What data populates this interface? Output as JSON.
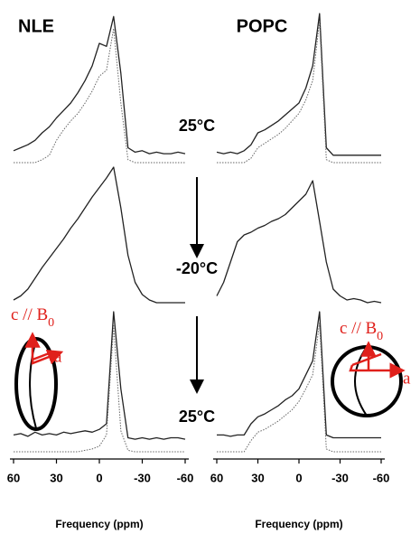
{
  "chart_data": [
    {
      "type": "line",
      "title": "NLE",
      "xlabel": "Frequency (ppm)",
      "xlim": [
        60,
        -60
      ],
      "xticks": [
        60,
        30,
        0,
        -30,
        -60
      ],
      "x": [
        60,
        55,
        50,
        45,
        40,
        35,
        30,
        25,
        20,
        15,
        10,
        5,
        0,
        -5,
        -10,
        -15,
        -20,
        -25,
        -30,
        -35,
        -40,
        -45,
        -50,
        -55,
        -60
      ],
      "panels": [
        {
          "series": [
            {
              "color": "#222222",
              "style": "solid",
              "values": [
                0.08,
                0.1,
                0.12,
                0.15,
                0.2,
                0.24,
                0.3,
                0.35,
                0.4,
                0.47,
                0.55,
                0.65,
                0.8,
                0.78,
                0.98,
                0.6,
                0.1,
                0.07,
                0.08,
                0.06,
                0.07,
                0.06,
                0.06,
                0.07,
                0.06
              ]
            },
            {
              "color": "#666666",
              "style": "dotted",
              "values": [
                0,
                0,
                0,
                0,
                0.02,
                0.05,
                0.15,
                0.22,
                0.28,
                0.33,
                0.4,
                0.48,
                0.58,
                0.62,
                0.9,
                0.4,
                0.02,
                0,
                0,
                0,
                0,
                0,
                0,
                0,
                0
              ]
            }
          ]
        },
        {
          "series": [
            {
              "color": "#222222",
              "style": "solid",
              "values": [
                0.02,
                0.05,
                0.1,
                0.18,
                0.26,
                0.33,
                0.4,
                0.47,
                0.55,
                0.62,
                0.7,
                0.78,
                0.85,
                0.92,
                1,
                0.7,
                0.35,
                0.15,
                0.06,
                0.02,
                0,
                0,
                0,
                0,
                0
              ]
            }
          ]
        },
        {
          "series": [
            {
              "color": "#222222",
              "style": "solid",
              "values": [
                0.12,
                0.13,
                0.11,
                0.14,
                0.12,
                0.13,
                0.12,
                0.14,
                0.13,
                0.14,
                0.15,
                0.14,
                0.16,
                0.2,
                1,
                0.45,
                0.1,
                0.09,
                0.1,
                0.09,
                0.1,
                0.09,
                0.1,
                0.1,
                0.09
              ]
            },
            {
              "color": "#666666",
              "style": "dotted",
              "values": [
                0,
                0,
                0,
                0,
                0,
                0,
                0,
                0,
                0,
                0,
                0.01,
                0.02,
                0.04,
                0.12,
                0.9,
                0.15,
                0.01,
                0,
                0,
                0,
                0,
                0,
                0,
                0,
                0
              ]
            }
          ]
        }
      ]
    },
    {
      "type": "line",
      "title": "POPC",
      "xlabel": "Frequency (ppm)",
      "xlim": [
        60,
        -60
      ],
      "xticks": [
        60,
        30,
        0,
        -30,
        -60
      ],
      "x": [
        60,
        55,
        50,
        45,
        40,
        35,
        30,
        25,
        20,
        15,
        10,
        5,
        0,
        -5,
        -10,
        -15,
        -20,
        -25,
        -30,
        -35,
        -40,
        -45,
        -50,
        -55,
        -60
      ],
      "panels": [
        {
          "series": [
            {
              "color": "#222222",
              "style": "solid",
              "values": [
                0.07,
                0.06,
                0.07,
                0.06,
                0.08,
                0.12,
                0.2,
                0.22,
                0.25,
                0.28,
                0.32,
                0.36,
                0.4,
                0.5,
                0.65,
                1,
                0.1,
                0.05,
                0.05,
                0.05,
                0.05,
                0.05,
                0.05,
                0.05,
                0.05
              ]
            },
            {
              "color": "#666666",
              "style": "dotted",
              "values": [
                0,
                0,
                0,
                0,
                0,
                0.03,
                0.1,
                0.13,
                0.16,
                0.19,
                0.23,
                0.28,
                0.33,
                0.42,
                0.55,
                0.95,
                0.02,
                0,
                0,
                0,
                0,
                0,
                0,
                0,
                0
              ]
            }
          ]
        },
        {
          "series": [
            {
              "color": "#222222",
              "style": "solid",
              "values": [
                0.05,
                0.15,
                0.3,
                0.45,
                0.5,
                0.52,
                0.55,
                0.57,
                0.6,
                0.62,
                0.65,
                0.7,
                0.75,
                0.8,
                0.9,
                0.6,
                0.3,
                0.1,
                0.05,
                0.02,
                0.03,
                0.02,
                0,
                0.01,
                0
              ]
            }
          ]
        },
        {
          "series": [
            {
              "color": "#222222",
              "style": "solid",
              "values": [
                0.12,
                0.12,
                0.11,
                0.12,
                0.12,
                0.2,
                0.25,
                0.27,
                0.3,
                0.33,
                0.37,
                0.4,
                0.45,
                0.55,
                0.65,
                1,
                0.12,
                0.1,
                0.1,
                0.1,
                0.1,
                0.1,
                0.1,
                0.1,
                0.1
              ]
            },
            {
              "color": "#666666",
              "style": "dotted",
              "values": [
                0,
                0,
                0,
                0,
                0,
                0.08,
                0.14,
                0.16,
                0.19,
                0.22,
                0.26,
                0.3,
                0.36,
                0.45,
                0.55,
                0.92,
                0.02,
                0,
                0,
                0,
                0,
                0,
                0,
                0,
                0
              ]
            }
          ]
        }
      ]
    }
  ],
  "temperatures": [
    "25°C",
    "-20°C",
    "25°C"
  ],
  "diagrams": [
    {
      "axis_c": "c // B",
      "axis_c_sub": "0",
      "axis_a": "a"
    },
    {
      "axis_c": "c // B",
      "axis_c_sub": "0",
      "axis_a": "a"
    }
  ]
}
